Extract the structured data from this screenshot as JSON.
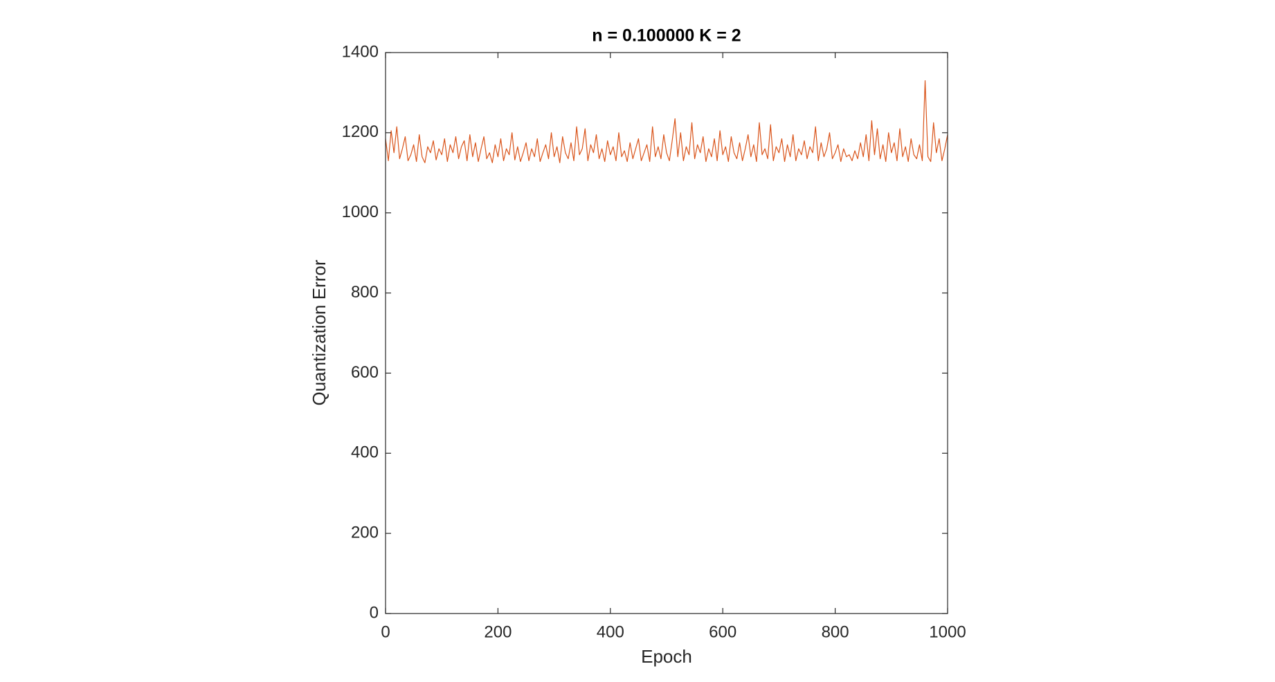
{
  "chart_data": {
    "type": "line",
    "title": "n = 0.100000 K = 2",
    "x_label": "Epoch",
    "y_label": "Quantization Error",
    "x": [
      0,
      5,
      10,
      15,
      20,
      25,
      30,
      35,
      40,
      45,
      50,
      55,
      60,
      65,
      70,
      75,
      80,
      85,
      90,
      95,
      100,
      105,
      110,
      115,
      120,
      125,
      130,
      135,
      140,
      145,
      150,
      155,
      160,
      165,
      170,
      175,
      180,
      185,
      190,
      195,
      200,
      205,
      210,
      215,
      220,
      225,
      230,
      235,
      240,
      245,
      250,
      255,
      260,
      265,
      270,
      275,
      280,
      285,
      290,
      295,
      300,
      305,
      310,
      315,
      320,
      325,
      330,
      335,
      340,
      345,
      350,
      355,
      360,
      365,
      370,
      375,
      380,
      385,
      390,
      395,
      400,
      405,
      410,
      415,
      420,
      425,
      430,
      435,
      440,
      445,
      450,
      455,
      460,
      465,
      470,
      475,
      480,
      485,
      490,
      495,
      500,
      505,
      510,
      515,
      520,
      525,
      530,
      535,
      540,
      545,
      550,
      555,
      560,
      565,
      570,
      575,
      580,
      585,
      590,
      595,
      600,
      605,
      610,
      615,
      620,
      625,
      630,
      635,
      640,
      645,
      650,
      655,
      660,
      665,
      670,
      675,
      680,
      685,
      690,
      695,
      700,
      705,
      710,
      715,
      720,
      725,
      730,
      735,
      740,
      745,
      750,
      755,
      760,
      765,
      770,
      775,
      780,
      785,
      790,
      795,
      800,
      805,
      810,
      815,
      820,
      825,
      830,
      835,
      840,
      845,
      850,
      855,
      860,
      865,
      870,
      875,
      880,
      885,
      890,
      895,
      900,
      905,
      910,
      915,
      920,
      925,
      930,
      935,
      940,
      945,
      950,
      955,
      960,
      965,
      970,
      975,
      980,
      985,
      990,
      995,
      1000
    ],
    "series": [
      {
        "color": "#d95319",
        "values": [
          1185,
          1130,
          1205,
          1150,
          1215,
          1135,
          1160,
          1190,
          1130,
          1145,
          1170,
          1128,
          1195,
          1140,
          1125,
          1165,
          1150,
          1180,
          1132,
          1160,
          1145,
          1185,
          1128,
          1170,
          1150,
          1190,
          1135,
          1165,
          1180,
          1130,
          1195,
          1140,
          1175,
          1128,
          1160,
          1190,
          1135,
          1150,
          1125,
          1170,
          1140,
          1185,
          1130,
          1160,
          1145,
          1200,
          1132,
          1165,
          1128,
          1150,
          1175,
          1130,
          1160,
          1140,
          1185,
          1128,
          1150,
          1170,
          1135,
          1200,
          1140,
          1165,
          1125,
          1190,
          1150,
          1135,
          1175,
          1130,
          1215,
          1145,
          1160,
          1210,
          1130,
          1170,
          1150,
          1195,
          1135,
          1160,
          1128,
          1180,
          1145,
          1165,
          1130,
          1200,
          1140,
          1155,
          1128,
          1175,
          1135,
          1160,
          1185,
          1130,
          1150,
          1170,
          1128,
          1215,
          1140,
          1165,
          1135,
          1195,
          1150,
          1130,
          1180,
          1235,
          1140,
          1200,
          1130,
          1165,
          1145,
          1225,
          1135,
          1170,
          1150,
          1190,
          1128,
          1160,
          1140,
          1185,
          1130,
          1205,
          1145,
          1165,
          1128,
          1190,
          1150,
          1135,
          1175,
          1130,
          1160,
          1195,
          1140,
          1170,
          1128,
          1225,
          1145,
          1160,
          1135,
          1220,
          1130,
          1165,
          1150,
          1185,
          1128,
          1170,
          1140,
          1195,
          1130,
          1160,
          1145,
          1180,
          1135,
          1165,
          1150,
          1215,
          1130,
          1175,
          1140,
          1160,
          1200,
          1135,
          1150,
          1170,
          1128,
          1160,
          1140,
          1145,
          1130,
          1155,
          1135,
          1175,
          1140,
          1195,
          1130,
          1230,
          1145,
          1210,
          1135,
          1170,
          1128,
          1200,
          1150,
          1175,
          1130,
          1210,
          1140,
          1165,
          1128,
          1185,
          1145,
          1135,
          1170,
          1130,
          1330,
          1140,
          1128,
          1225,
          1150,
          1185,
          1130,
          1160,
          1195
        ]
      }
    ],
    "xlim": [
      0,
      1000
    ],
    "xticks": [
      0,
      200,
      400,
      600,
      800,
      1000
    ],
    "ylim": [
      0,
      1400
    ],
    "yticks": [
      0,
      200,
      400,
      600,
      800,
      1000,
      1200,
      1400
    ]
  }
}
